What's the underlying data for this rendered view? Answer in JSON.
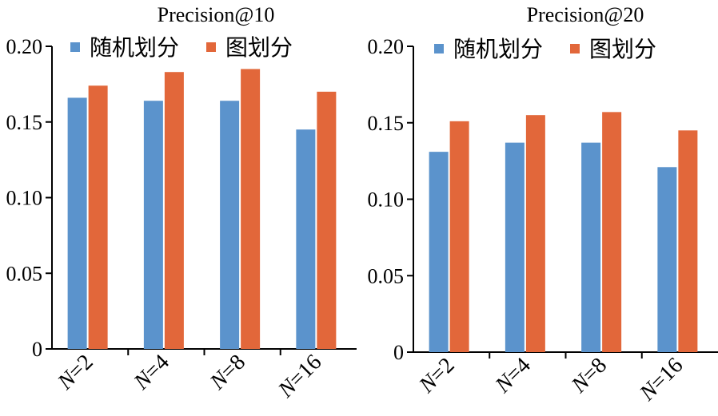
{
  "colors": {
    "series_a": "#5b93cc",
    "series_b": "#e2673a"
  },
  "chart_data": [
    {
      "type": "bar",
      "title": "Precision@10",
      "categories": [
        "N=2",
        "N=4",
        "N=8",
        "N=16"
      ],
      "series": [
        {
          "name": "随机划分",
          "values": [
            0.166,
            0.164,
            0.164,
            0.145
          ]
        },
        {
          "name": "图划分",
          "values": [
            0.174,
            0.183,
            0.185,
            0.17
          ]
        }
      ],
      "yticks": [
        "0",
        "0.05",
        "0.10",
        "0.15",
        "0.20"
      ],
      "ylim": [
        0,
        0.2
      ],
      "legend": "top",
      "grid": false
    },
    {
      "type": "bar",
      "title": "Precision@20",
      "categories": [
        "N=2",
        "N=4",
        "N=8",
        "N=16"
      ],
      "series": [
        {
          "name": "随机划分",
          "values": [
            0.131,
            0.137,
            0.137,
            0.121
          ]
        },
        {
          "name": "图划分",
          "values": [
            0.151,
            0.155,
            0.157,
            0.145
          ]
        }
      ],
      "yticks": [
        "0",
        "0.05",
        "0.10",
        "0.15",
        "0.20"
      ],
      "ylim": [
        0,
        0.2
      ],
      "legend": "top",
      "grid": false
    }
  ]
}
